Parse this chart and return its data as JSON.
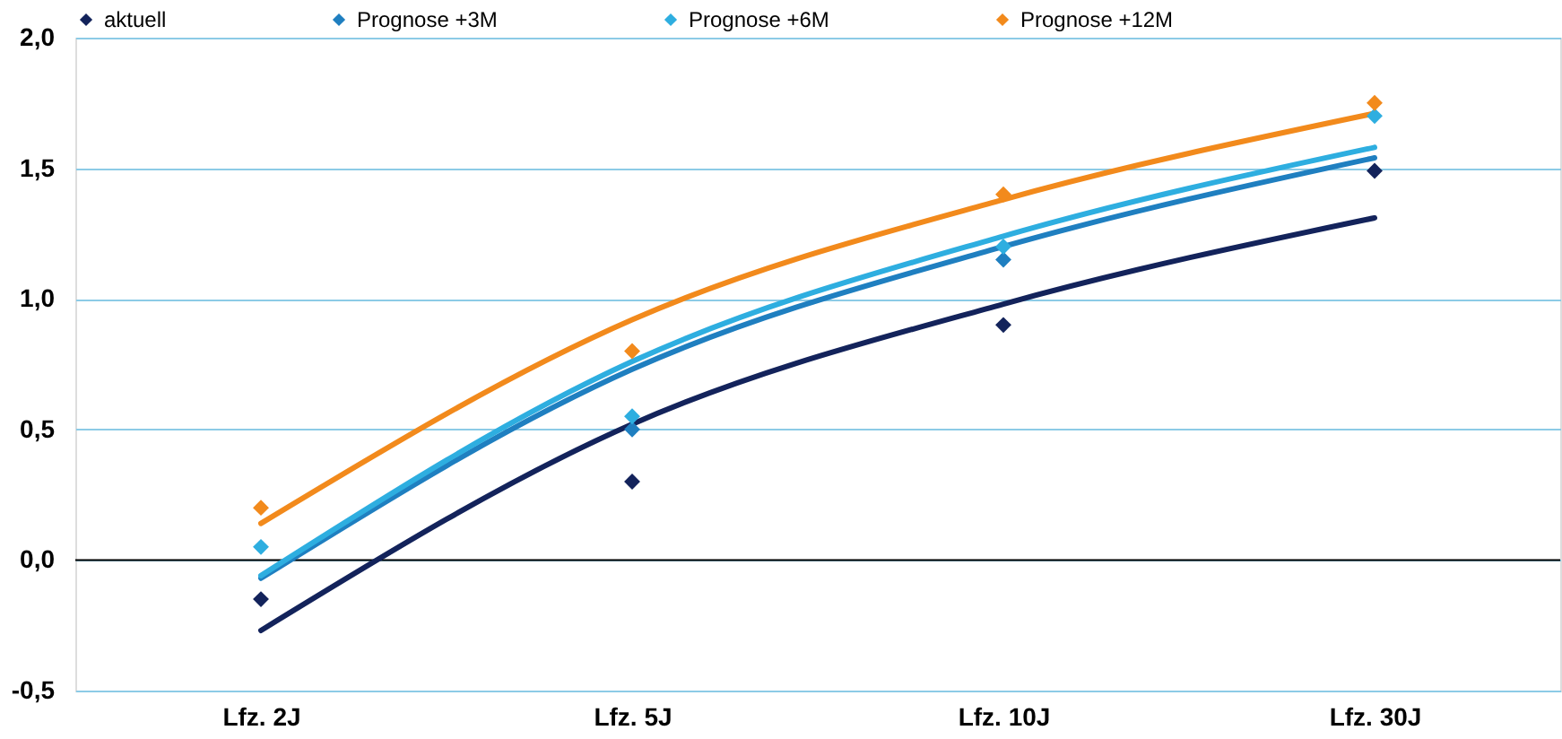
{
  "chart_data": {
    "type": "scatter",
    "categories": [
      "Lfz. 2J",
      "Lfz. 5J",
      "Lfz. 10J",
      "Lfz. 30J"
    ],
    "ylim": [
      -0.5,
      2.0
    ],
    "yticks": [
      {
        "value": -0.5,
        "label": "-0,5"
      },
      {
        "value": 0,
        "label": "0,0"
      },
      {
        "value": 0.5,
        "label": "0,5"
      },
      {
        "value": 1.0,
        "label": "1,0"
      },
      {
        "value": 1.5,
        "label": "1,5"
      },
      {
        "value": 2.0,
        "label": "2,0"
      }
    ],
    "grid": "y",
    "legend": "top",
    "marker": "diamond",
    "ref_lines": [
      {
        "axis": "y",
        "value": 0,
        "color": "#000000"
      }
    ],
    "series": [
      {
        "type": "line",
        "color": "#13235b",
        "marker": "none",
        "values": [
          -0.27,
          0.52,
          0.98,
          1.31
        ]
      },
      {
        "type": "line",
        "color": "#1f7fc0",
        "marker": "none",
        "values": [
          -0.07,
          0.73,
          1.2,
          1.54
        ]
      },
      {
        "type": "line",
        "color": "#2eaee0",
        "marker": "none",
        "values": [
          -0.06,
          0.76,
          1.24,
          1.58
        ]
      },
      {
        "type": "line",
        "color": "#f28a1c",
        "marker": "none",
        "values": [
          0.14,
          0.92,
          1.38,
          1.71
        ]
      },
      {
        "name": "aktuell",
        "color": "#13235b",
        "values": [
          -0.15,
          0.3,
          0.9,
          1.49
        ]
      },
      {
        "name": "Prognose +3M",
        "color": "#1f7fc0",
        "values": [
          null,
          0.5,
          1.15,
          null
        ]
      },
      {
        "name": "Prognose +6M",
        "color": "#2eaee0",
        "values": [
          0.05,
          0.55,
          1.2,
          1.7
        ]
      },
      {
        "name": "Prognose +12M",
        "color": "#f28a1c",
        "values": [
          0.2,
          0.8,
          1.4,
          1.75
        ]
      }
    ]
  }
}
